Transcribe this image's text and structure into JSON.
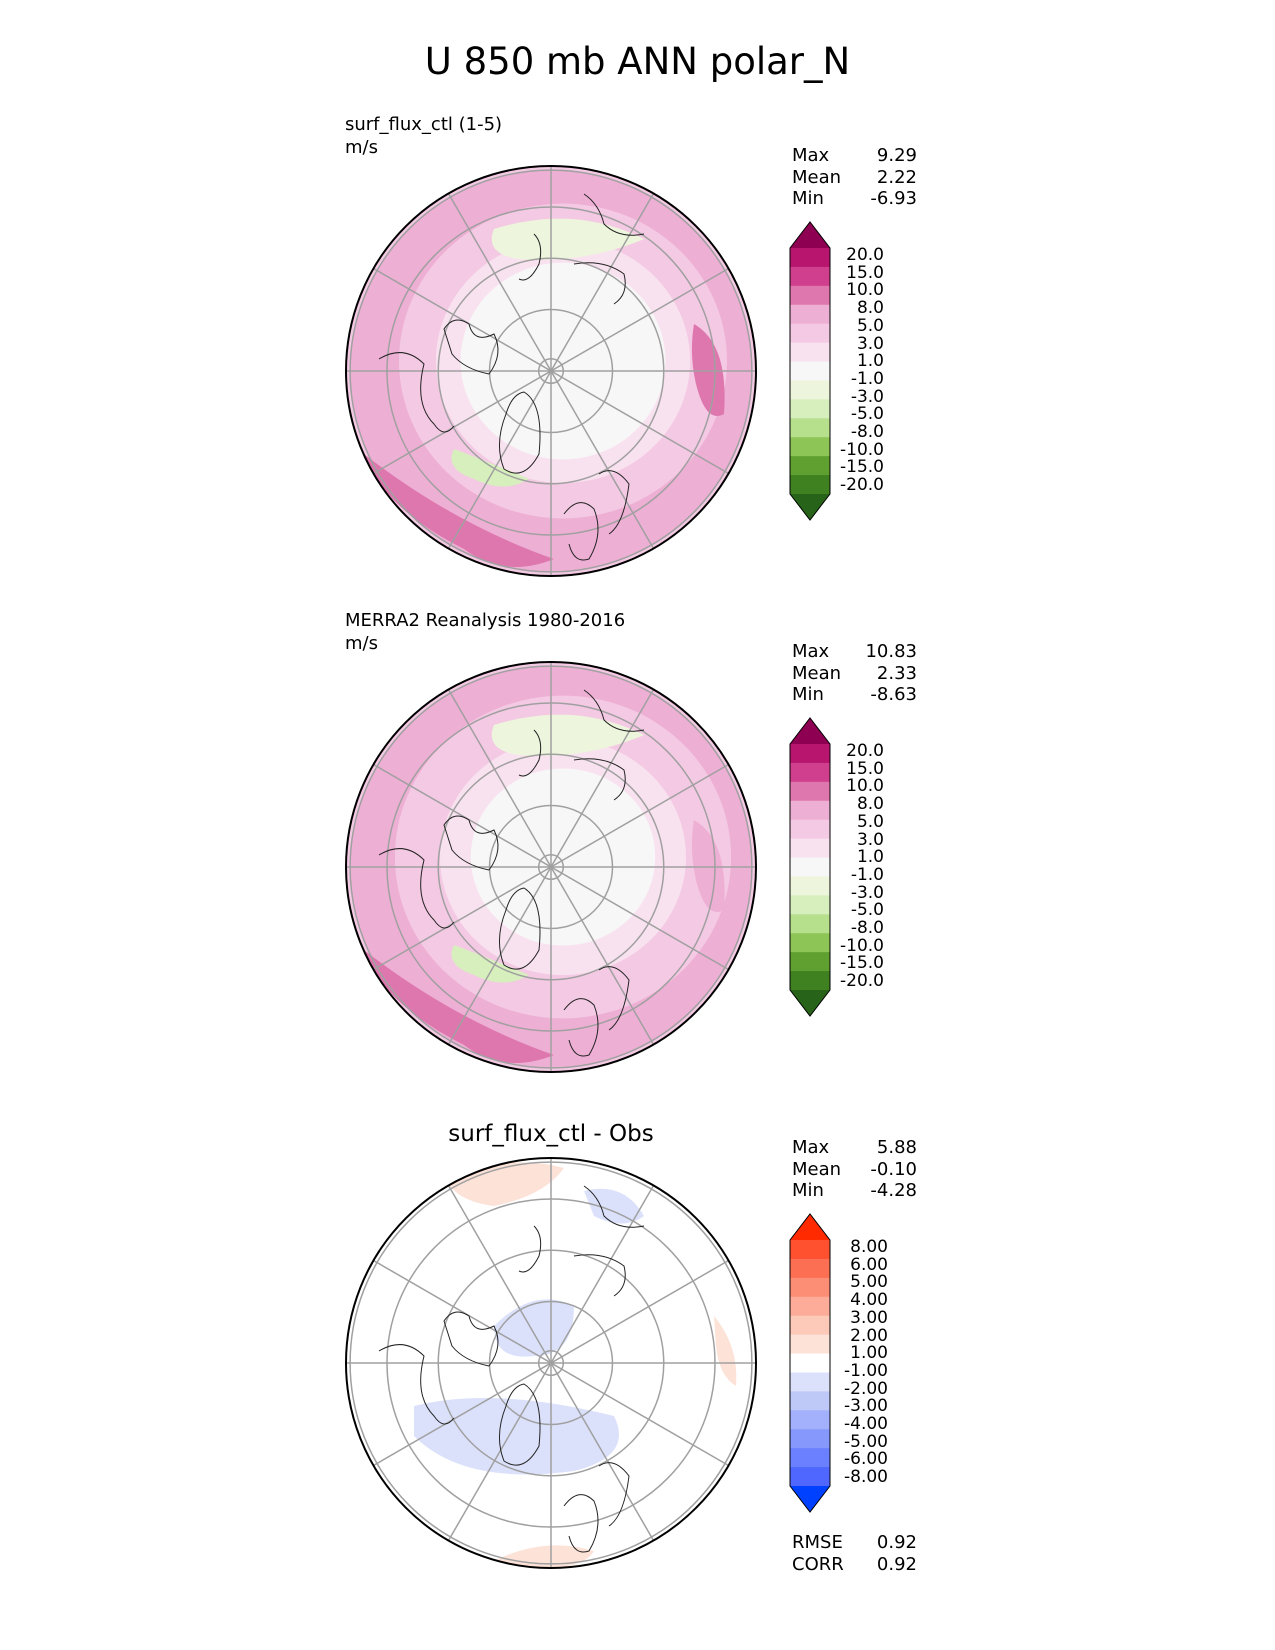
{
  "title": "U 850 mb ANN polar_N",
  "panels": [
    {
      "id": "test",
      "title": "surf_flux_ctl (1-5)",
      "units": "m/s",
      "stats": [
        {
          "label": "Max",
          "value": "9.29"
        },
        {
          "label": "Mean",
          "value": "2.22"
        },
        {
          "label": "Min",
          "value": "-6.93"
        }
      ]
    },
    {
      "id": "reference",
      "title": "MERRA2 Reanalysis 1980-2016",
      "units": "m/s",
      "stats": [
        {
          "label": "Max",
          "value": "10.83"
        },
        {
          "label": "Mean",
          "value": "2.33"
        },
        {
          "label": "Min",
          "value": "-8.63"
        }
      ]
    },
    {
      "id": "difference",
      "title": "surf_flux_ctl - Obs",
      "stats": [
        {
          "label": "Max",
          "value": "5.88"
        },
        {
          "label": "Mean",
          "value": "-0.10"
        },
        {
          "label": "Min",
          "value": "-4.28"
        }
      ],
      "metrics": [
        {
          "label": "RMSE",
          "value": "0.92"
        },
        {
          "label": "CORR",
          "value": "0.92"
        }
      ]
    }
  ],
  "colorbars": {
    "main": {
      "ticks": [
        "20.0",
        "15.0",
        "10.0",
        "8.0",
        "5.0",
        "3.0",
        "1.0",
        "-1.0",
        "-3.0",
        "-5.0",
        "-8.0",
        "-10.0",
        "-15.0",
        "-20.0"
      ],
      "colors": [
        "#8e0152",
        "#b8156f",
        "#cf3f8d",
        "#de77ae",
        "#eeafd4",
        "#f4c9e4",
        "#f9e2ef",
        "#f7f7f7",
        "#edf6dc",
        "#d7eebd",
        "#b7e08d",
        "#8dc556",
        "#5fa030",
        "#3f8020",
        "#276419"
      ]
    },
    "diff": {
      "ticks": [
        "8.00",
        "6.00",
        "5.00",
        "4.00",
        "3.00",
        "2.00",
        "1.00",
        "-1.00",
        "-2.00",
        "-3.00",
        "-4.00",
        "-5.00",
        "-6.00",
        "-8.00"
      ],
      "colors": [
        "#ff2a00",
        "#ff5030",
        "#fd6f53",
        "#fc8e76",
        "#fcac99",
        "#fdc9b9",
        "#fde2d8",
        "#ffffff",
        "#dbe1fb",
        "#bfc9f8",
        "#a3b0fb",
        "#8798fc",
        "#6b80fe",
        "#4f66ff",
        "#0040ff"
      ]
    }
  },
  "map_fields": {
    "test": {
      "background": "#f4c9e4",
      "bands": [
        {
          "radius_fraction": 0.98,
          "color": "#eeafd4"
        },
        {
          "radius_fraction": 0.8,
          "color": "#f4c9e4"
        },
        {
          "radius_fraction": 0.62,
          "color": "#f9e2ef"
        },
        {
          "radius_fraction": 0.5,
          "color": "#f7f7f7"
        }
      ],
      "regions": [
        {
          "name": "north-pacific-jet",
          "color": "#de77ae"
        },
        {
          "name": "north-atlantic-jet",
          "color": "#de77ae"
        },
        {
          "name": "greenland-easterlies",
          "color": "#d7eebd"
        },
        {
          "name": "siberia-easterlies",
          "color": "#edf6dc"
        }
      ]
    },
    "reference": {
      "background": "#f4c9e4",
      "bands": [
        {
          "radius_fraction": 0.98,
          "color": "#eeafd4"
        },
        {
          "radius_fraction": 0.82,
          "color": "#f4c9e4"
        },
        {
          "radius_fraction": 0.6,
          "color": "#f9e2ef"
        },
        {
          "radius_fraction": 0.45,
          "color": "#f7f7f7"
        }
      ],
      "regions": [
        {
          "name": "north-pacific-jet",
          "color": "#de77ae"
        },
        {
          "name": "north-atlantic-jet",
          "color": "#eeafd4"
        },
        {
          "name": "greenland-easterlies",
          "color": "#d7eebd"
        },
        {
          "name": "siberia-easterlies",
          "color": "#edf6dc"
        }
      ]
    },
    "difference": {
      "background": "#ffffff",
      "regions": [
        {
          "name": "asia-negative",
          "color": "#dbe1fb"
        },
        {
          "name": "pole-negative",
          "color": "#dbe1fb"
        },
        {
          "name": "kamchatka-negative",
          "color": "#dbe1fb"
        },
        {
          "name": "europe-positive",
          "color": "#fde2d8"
        },
        {
          "name": "atlantic-positive",
          "color": "#fde2d8"
        },
        {
          "name": "pacific-positive",
          "color": "#fde2d8"
        }
      ]
    }
  }
}
